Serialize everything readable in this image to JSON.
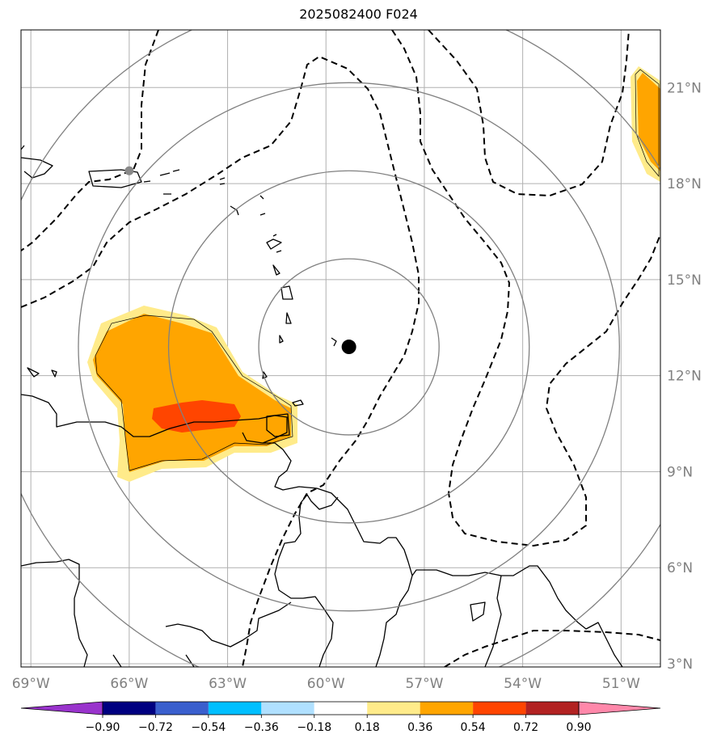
{
  "title": "2025082400 F024",
  "map": {
    "lon_range": [
      -69.3,
      -49.8
    ],
    "lat_range": [
      2.9,
      22.8
    ],
    "lon_ticks": [
      {
        "value": -69,
        "label": "69°W"
      },
      {
        "value": -66,
        "label": "66°W"
      },
      {
        "value": -63,
        "label": "63°W"
      },
      {
        "value": -60,
        "label": "60°W"
      },
      {
        "value": -57,
        "label": "57°W"
      },
      {
        "value": -54,
        "label": "54°W"
      },
      {
        "value": -51,
        "label": "51°W"
      }
    ],
    "lat_ticks": [
      {
        "value": 3,
        "label": "3°N"
      },
      {
        "value": 6,
        "label": "6°N"
      },
      {
        "value": 9,
        "label": "9°N"
      },
      {
        "value": 12,
        "label": "12°N"
      },
      {
        "value": 15,
        "label": "15°N"
      },
      {
        "value": 18,
        "label": "18°N"
      },
      {
        "value": 21,
        "label": "21°N"
      }
    ],
    "grid": true,
    "storm_center": {
      "lon": -59.3,
      "lat": 12.9
    },
    "secondary_marker": {
      "lon": -66.0,
      "lat": 18.4
    },
    "range_rings_deg": [
      2.75,
      5.5,
      8.25,
      11.0
    ],
    "colors": {
      "coast": "#000000",
      "grid": "#b0b0b0",
      "rings": "#808080",
      "axis_labels": "#808080",
      "center": "#000000",
      "secondary": "#888888"
    }
  },
  "colorbar": {
    "boundaries": [
      "−0.90",
      "−0.72",
      "−0.54",
      "−0.36",
      "−0.18",
      "0.18",
      "0.36",
      "0.54",
      "0.72",
      "0.90"
    ],
    "colors": [
      "#9933cc",
      "#000080",
      "#3a5fcd",
      "#00bfff",
      "#b0e0ff",
      "#ffffff",
      "#ffeb8a",
      "#ffa500",
      "#ff4500",
      "#b22222",
      "#ff88aa"
    ]
  }
}
